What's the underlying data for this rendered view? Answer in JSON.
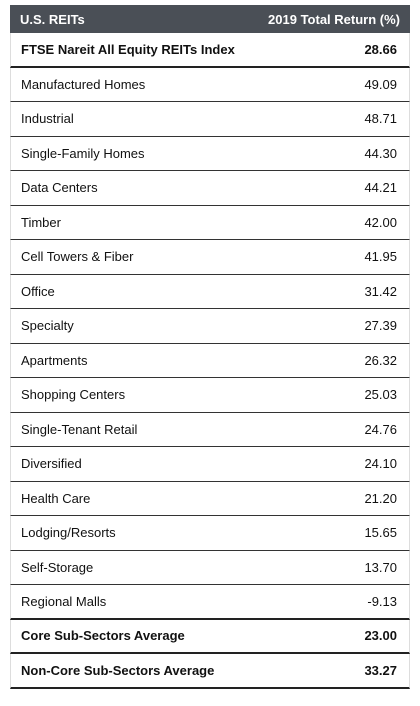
{
  "table": {
    "header": [
      "U.S. REITs",
      "2019 Total Return (%)"
    ],
    "rows": [
      [
        "FTSE Nareit All Equity REITs Index",
        "28.66"
      ],
      [
        "Manufactured Homes",
        "49.09"
      ],
      [
        "Industrial",
        "48.71"
      ],
      [
        "Single-Family Homes",
        "44.30"
      ],
      [
        "Data Centers",
        "44.21"
      ],
      [
        "Timber",
        "42.00"
      ],
      [
        "Cell Towers & Fiber",
        "41.95"
      ],
      [
        "Office",
        "31.42"
      ],
      [
        "Specialty",
        "27.39"
      ],
      [
        "Apartments",
        "26.32"
      ],
      [
        "Shopping Centers",
        "25.03"
      ],
      [
        "Single-Tenant Retail",
        "24.76"
      ],
      [
        "Diversified",
        "24.10"
      ],
      [
        "Health Care",
        "21.20"
      ],
      [
        "Lodging/Resorts",
        "15.65"
      ],
      [
        "Self-Storage",
        "13.70"
      ],
      [
        "Regional Malls",
        "-9.13"
      ],
      [
        "Core Sub-Sectors Average",
        "23.00"
      ],
      [
        "Non-Core Sub-Sectors Average",
        "33.27"
      ]
    ]
  }
}
